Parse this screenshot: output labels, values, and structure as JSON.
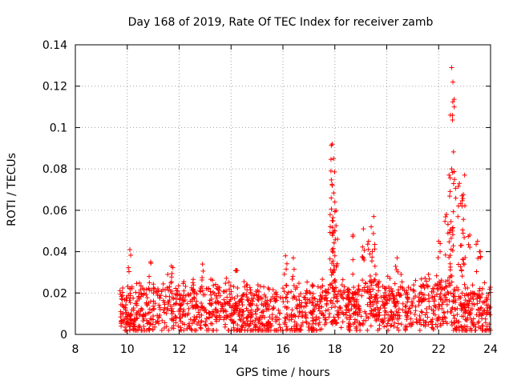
{
  "chart_data": {
    "type": "scatter",
    "title": "Day 168 of 2019, Rate Of TEC Index for receiver zamb",
    "xlabel": "GPS time / hours",
    "ylabel": "ROTI / TECUs",
    "xlim": [
      8,
      24
    ],
    "ylim": [
      0,
      0.14
    ],
    "xticks": [
      "8",
      "10",
      "12",
      "14",
      "16",
      "18",
      "20",
      "22",
      "24"
    ],
    "yticks": [
      "0",
      "0.02",
      "0.04",
      "0.06",
      "0.08",
      "0.1",
      "0.12",
      "0.14"
    ],
    "grid": true,
    "marker": "plus",
    "series": [
      {
        "name": "ROTI",
        "color": "#ff0000",
        "data_start_hour": 9.7,
        "data_end_hour": 24.0,
        "typical_range": [
          0.002,
          0.027
        ],
        "spikes": [
          {
            "x": 10.1,
            "y": 0.041
          },
          {
            "x": 10.9,
            "y": 0.035
          },
          {
            "x": 11.7,
            "y": 0.033
          },
          {
            "x": 12.9,
            "y": 0.034
          },
          {
            "x": 14.2,
            "y": 0.031
          },
          {
            "x": 16.1,
            "y": 0.038
          },
          {
            "x": 16.4,
            "y": 0.037
          },
          {
            "x": 17.9,
            "y": 0.092
          },
          {
            "x": 17.95,
            "y": 0.085
          },
          {
            "x": 17.85,
            "y": 0.079
          },
          {
            "x": 17.9,
            "y": 0.072
          },
          {
            "x": 18.0,
            "y": 0.064
          },
          {
            "x": 17.9,
            "y": 0.055
          },
          {
            "x": 18.1,
            "y": 0.046
          },
          {
            "x": 18.0,
            "y": 0.038
          },
          {
            "x": 18.7,
            "y": 0.048
          },
          {
            "x": 19.1,
            "y": 0.051
          },
          {
            "x": 19.3,
            "y": 0.045
          },
          {
            "x": 19.5,
            "y": 0.057
          },
          {
            "x": 19.4,
            "y": 0.052
          },
          {
            "x": 20.4,
            "y": 0.037
          },
          {
            "x": 22.0,
            "y": 0.045
          },
          {
            "x": 22.3,
            "y": 0.058
          },
          {
            "x": 22.4,
            "y": 0.077
          },
          {
            "x": 22.45,
            "y": 0.106
          },
          {
            "x": 22.5,
            "y": 0.129
          },
          {
            "x": 22.55,
            "y": 0.122
          },
          {
            "x": 22.6,
            "y": 0.11
          },
          {
            "x": 22.5,
            "y": 0.08
          },
          {
            "x": 22.8,
            "y": 0.073
          },
          {
            "x": 22.9,
            "y": 0.062
          },
          {
            "x": 23.0,
            "y": 0.077
          },
          {
            "x": 22.9,
            "y": 0.067
          },
          {
            "x": 23.2,
            "y": 0.048
          },
          {
            "x": 23.5,
            "y": 0.045
          },
          {
            "x": 23.6,
            "y": 0.04
          }
        ]
      }
    ]
  }
}
